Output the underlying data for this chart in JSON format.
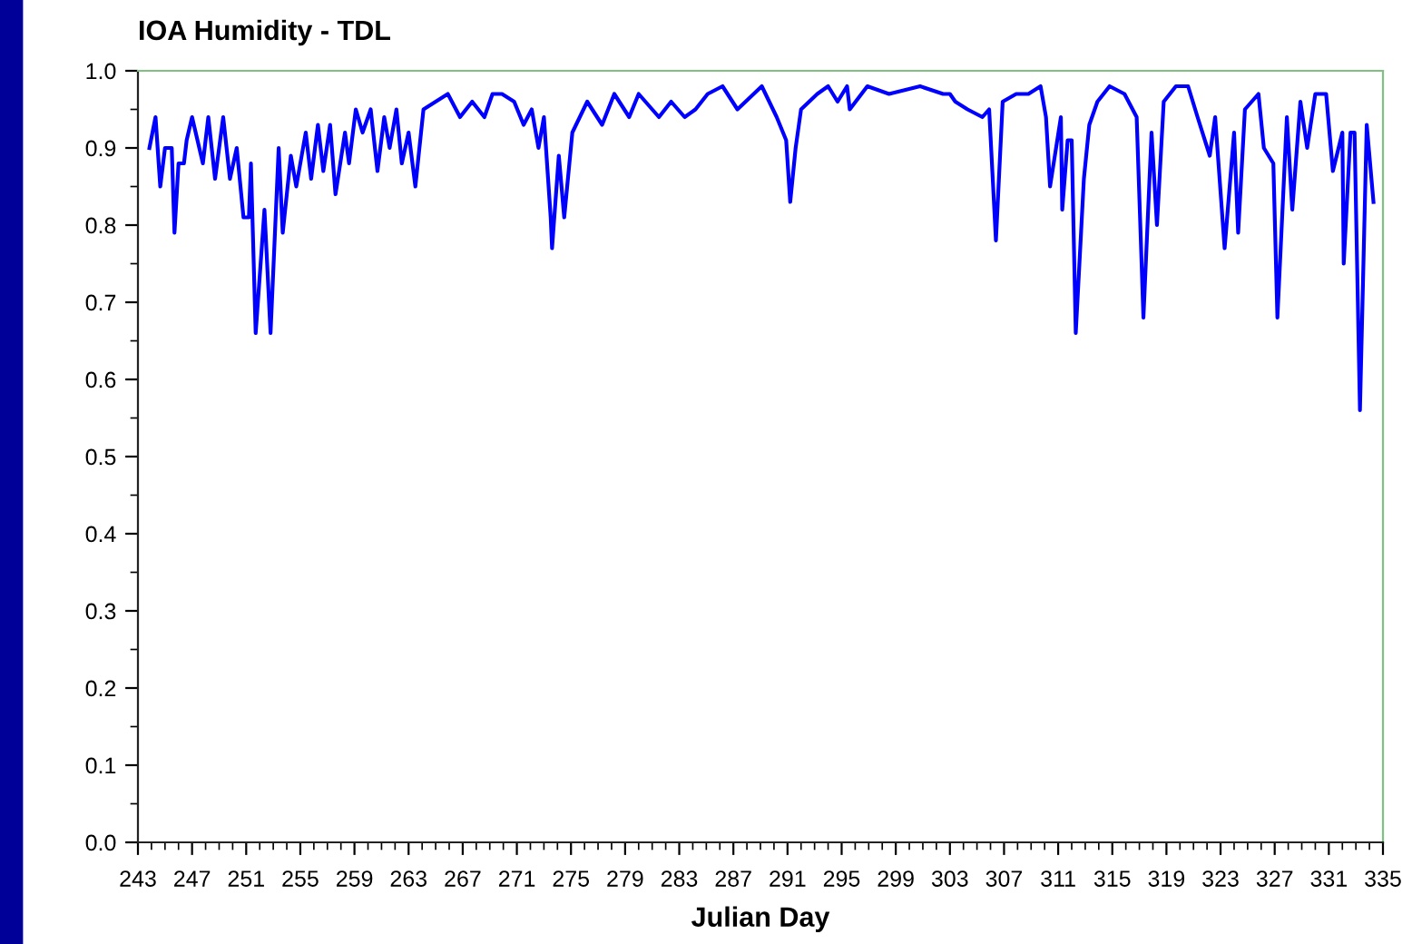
{
  "chart_data": {
    "type": "line",
    "title": "IOA Humidity - TDL",
    "xlabel": "Julian Day",
    "x": [
      243.85,
      244.3,
      244.65,
      245.0,
      245.5,
      245.7,
      246.0,
      246.4,
      246.6,
      247.0,
      247.8,
      248.2,
      248.7,
      249.3,
      249.8,
      250.3,
      250.8,
      251.2,
      251.35,
      251.7,
      252.35,
      252.8,
      253.4,
      253.7,
      254.3,
      254.7,
      255.4,
      255.8,
      256.3,
      256.7,
      257.2,
      257.6,
      258.3,
      258.6,
      259.1,
      259.6,
      260.2,
      260.7,
      261.2,
      261.6,
      262.1,
      262.5,
      263.0,
      263.5,
      264.1,
      265.0,
      265.9,
      266.8,
      267.7,
      268.6,
      269.2,
      269.9,
      270.8,
      271.5,
      272.1,
      272.6,
      273.0,
      273.5,
      273.6,
      274.1,
      274.5,
      275.1,
      276.2,
      277.3,
      278.2,
      279.3,
      280.0,
      281.5,
      282.4,
      283.4,
      284.2,
      285.1,
      286.2,
      287.3,
      289.1,
      290.2,
      290.9,
      291.2,
      291.6,
      292.0,
      293.2,
      294.0,
      294.7,
      295.4,
      295.6,
      296.9,
      298.5,
      300.8,
      302.5,
      303.0,
      303.4,
      304.3,
      305.4,
      305.9,
      306.4,
      306.9,
      307.9,
      308.8,
      309.7,
      310.1,
      310.4,
      311.2,
      311.3,
      311.7,
      312.0,
      312.3,
      312.9,
      313.3,
      313.9,
      314.8,
      315.9,
      316.8,
      317.3,
      317.9,
      318.3,
      318.8,
      319.7,
      320.6,
      321.3,
      322.2,
      322.6,
      323.3,
      324.0,
      324.3,
      324.8,
      325.8,
      326.2,
      326.9,
      327.2,
      327.9,
      328.3,
      328.9,
      329.4,
      330.0,
      330.8,
      331.3,
      332.0,
      332.1,
      332.6,
      332.9,
      333.3,
      333.8,
      334.3
    ],
    "series": [
      {
        "color": "#0000ff",
        "values": [
          0.9,
          0.94,
          0.85,
          0.9,
          0.9,
          0.79,
          0.88,
          0.88,
          0.91,
          0.94,
          0.88,
          0.94,
          0.86,
          0.94,
          0.86,
          0.9,
          0.81,
          0.81,
          0.88,
          0.66,
          0.82,
          0.66,
          0.9,
          0.79,
          0.89,
          0.85,
          0.92,
          0.86,
          0.93,
          0.87,
          0.93,
          0.84,
          0.92,
          0.88,
          0.95,
          0.92,
          0.95,
          0.87,
          0.94,
          0.9,
          0.95,
          0.88,
          0.92,
          0.85,
          0.95,
          0.96,
          0.97,
          0.94,
          0.96,
          0.94,
          0.97,
          0.97,
          0.96,
          0.93,
          0.95,
          0.9,
          0.94,
          0.81,
          0.77,
          0.89,
          0.81,
          0.92,
          0.96,
          0.93,
          0.97,
          0.94,
          0.97,
          0.94,
          0.96,
          0.94,
          0.95,
          0.97,
          0.98,
          0.95,
          0.98,
          0.94,
          0.91,
          0.83,
          0.9,
          0.95,
          0.97,
          0.98,
          0.96,
          0.98,
          0.95,
          0.98,
          0.97,
          0.98,
          0.97,
          0.97,
          0.96,
          0.95,
          0.94,
          0.95,
          0.78,
          0.96,
          0.97,
          0.97,
          0.98,
          0.94,
          0.85,
          0.94,
          0.82,
          0.91,
          0.91,
          0.66,
          0.86,
          0.93,
          0.96,
          0.98,
          0.97,
          0.94,
          0.68,
          0.92,
          0.8,
          0.96,
          0.98,
          0.98,
          0.94,
          0.89,
          0.94,
          0.77,
          0.92,
          0.79,
          0.95,
          0.97,
          0.9,
          0.88,
          0.68,
          0.94,
          0.82,
          0.96,
          0.9,
          0.97,
          0.97,
          0.87,
          0.92,
          0.75,
          0.92,
          0.92,
          0.56,
          0.93,
          0.83
        ]
      }
    ],
    "xlim": [
      243,
      335
    ],
    "xticks": [
      243,
      247,
      251,
      255,
      259,
      263,
      267,
      271,
      275,
      279,
      283,
      287,
      291,
      295,
      299,
      303,
      307,
      311,
      315,
      319,
      323,
      327,
      331,
      335
    ],
    "ylim": [
      0,
      1
    ],
    "yticks": [
      {
        "value": 0,
        "label": "0.0"
      },
      0.1,
      0.2,
      0.3,
      0.4,
      0.5,
      0.6,
      0.7,
      0.8,
      0.9,
      {
        "value": 1,
        "label": "1.0"
      }
    ],
    "grid": false,
    "legend": false,
    "marker": "none",
    "line_style": "solid"
  }
}
